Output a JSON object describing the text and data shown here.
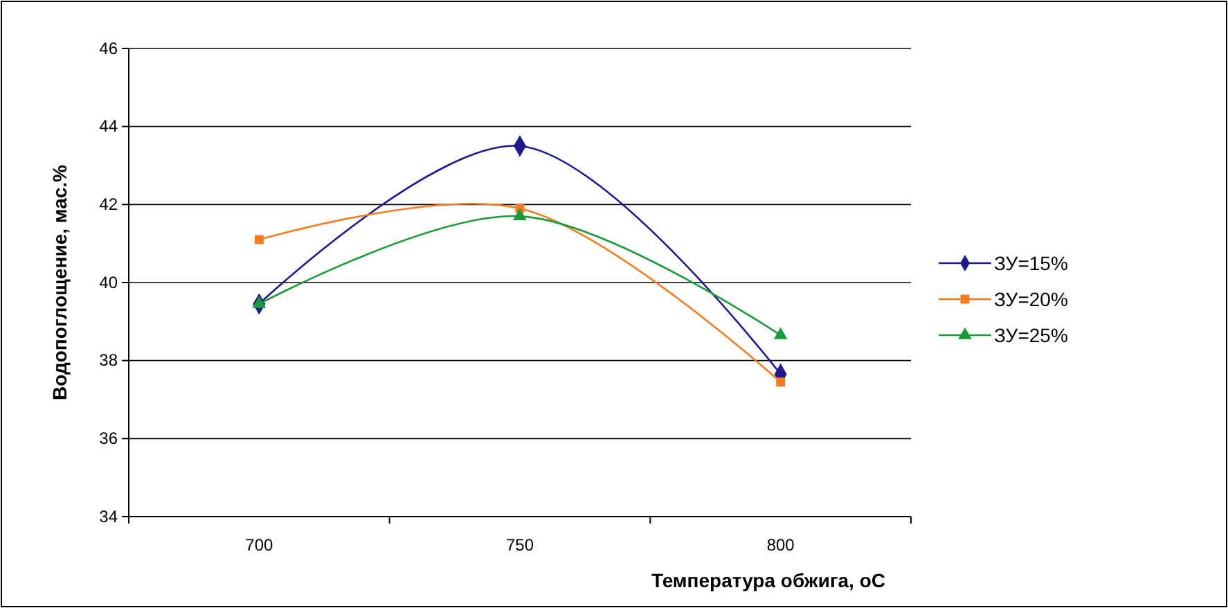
{
  "chart_data": {
    "type": "line",
    "xlabel": "Температура обжига, оС",
    "ylabel": "Водопоглощение, мас.%",
    "categories": [
      "700",
      "750",
      "800"
    ],
    "series": [
      {
        "name": "ЗУ=15%",
        "color": "#1f1a8a",
        "marker": "diamond",
        "values": [
          39.45,
          43.5,
          37.65
        ]
      },
      {
        "name": "ЗУ=20%",
        "color": "#f47c20",
        "marker": "square",
        "values": [
          41.1,
          41.9,
          37.45
        ]
      },
      {
        "name": "ЗУ=25%",
        "color": "#1a9a3a",
        "marker": "triangle",
        "values": [
          39.45,
          41.7,
          38.65
        ]
      }
    ],
    "ylim": [
      34,
      46
    ],
    "yticks": [
      34,
      36,
      38,
      40,
      42,
      44,
      46
    ],
    "grid": "y",
    "legend": "right",
    "line_style": "solid"
  }
}
